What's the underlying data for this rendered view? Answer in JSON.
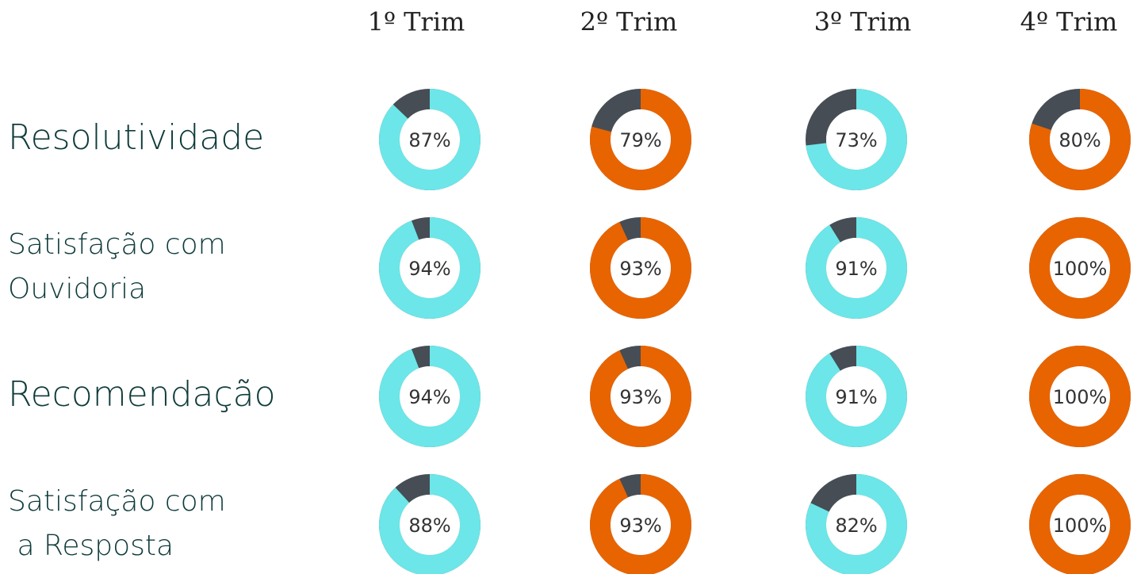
{
  "columns": [
    "1º Trim",
    "2º Trim",
    "3º Trim",
    "4º Trim"
  ],
  "rows": [
    [
      "Resolutividade"
    ],
    [
      "Satisfação com",
      "Ouvidoria"
    ],
    [
      "Recomendação"
    ],
    [
      "Satisfação com",
      " a Resposta"
    ]
  ],
  "chart_data": [
    {
      "type": "donut",
      "values": [
        87
      ],
      "value_labels": [
        "87%"
      ],
      "color": "#6ce6e8",
      "track_color": "#464d55"
    },
    {
      "type": "donut",
      "values": [
        79
      ],
      "value_labels": [
        "79%"
      ],
      "color": "#e86400",
      "track_color": "#464d55"
    },
    {
      "type": "donut",
      "values": [
        73
      ],
      "value_labels": [
        "73%"
      ],
      "color": "#6ce6e8",
      "track_color": "#464d55"
    },
    {
      "type": "donut",
      "values": [
        80
      ],
      "value_labels": [
        "80%"
      ],
      "color": "#e86400",
      "track_color": "#464d55"
    },
    {
      "type": "donut",
      "values": [
        94
      ],
      "value_labels": [
        "94%"
      ],
      "color": "#6ce6e8",
      "track_color": "#464d55"
    },
    {
      "type": "donut",
      "values": [
        93
      ],
      "value_labels": [
        "93%"
      ],
      "color": "#e86400",
      "track_color": "#464d55"
    },
    {
      "type": "donut",
      "values": [
        91
      ],
      "value_labels": [
        "91%"
      ],
      "color": "#6ce6e8",
      "track_color": "#464d55"
    },
    {
      "type": "donut",
      "values": [
        100
      ],
      "value_labels": [
        "100%"
      ],
      "color": "#e86400",
      "track_color": "#464d55"
    },
    {
      "type": "donut",
      "values": [
        94
      ],
      "value_labels": [
        "94%"
      ],
      "color": "#6ce6e8",
      "track_color": "#464d55"
    },
    {
      "type": "donut",
      "values": [
        93
      ],
      "value_labels": [
        "93%"
      ],
      "color": "#e86400",
      "track_color": "#464d55"
    },
    {
      "type": "donut",
      "values": [
        91
      ],
      "value_labels": [
        "91%"
      ],
      "color": "#6ce6e8",
      "track_color": "#464d55"
    },
    {
      "type": "donut",
      "values": [
        100
      ],
      "value_labels": [
        "100%"
      ],
      "color": "#e86400",
      "track_color": "#464d55"
    },
    {
      "type": "donut",
      "values": [
        88
      ],
      "value_labels": [
        "88%"
      ],
      "color": "#6ce6e8",
      "track_color": "#464d55"
    },
    {
      "type": "donut",
      "values": [
        93
      ],
      "value_labels": [
        "93%"
      ],
      "color": "#e86400",
      "track_color": "#464d55"
    },
    {
      "type": "donut",
      "values": [
        82
      ],
      "value_labels": [
        "82%"
      ],
      "color": "#6ce6e8",
      "track_color": "#464d55"
    },
    {
      "type": "donut",
      "values": [
        100
      ],
      "value_labels": [
        "100%"
      ],
      "color": "#e86400",
      "track_color": "#464d55"
    }
  ]
}
